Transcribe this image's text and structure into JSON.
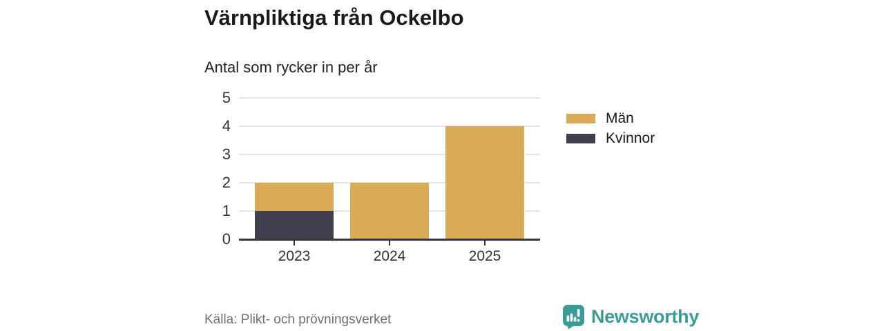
{
  "header": {
    "title": "Värnpliktiga från Ockelbo",
    "subtitle": "Antal som rycker in per år"
  },
  "chart_data": {
    "type": "bar",
    "stacked": true,
    "title": "Värnpliktiga från Ockelbo",
    "subtitle": "Antal som rycker in per år",
    "categories": [
      "2023",
      "2024",
      "2025"
    ],
    "series": [
      {
        "name": "Män",
        "color": "#D9AB57",
        "values": [
          1,
          2,
          4
        ]
      },
      {
        "name": "Kvinnor",
        "color": "#413F4D",
        "values": [
          1,
          0,
          0
        ]
      }
    ],
    "totals": [
      2,
      2,
      4
    ],
    "xlabel": "",
    "ylabel": "",
    "ylim": [
      0,
      5
    ],
    "yticks": [
      0,
      1,
      2,
      3,
      4,
      5
    ],
    "grid": true,
    "legend_position": "right"
  },
  "legend": {
    "items": [
      {
        "label": "Män",
        "color": "#D9AB57"
      },
      {
        "label": "Kvinnor",
        "color": "#413F4D"
      }
    ]
  },
  "footer": {
    "source": "Källa: Plikt- och prövningsverket",
    "brand": "Newsworthy"
  },
  "colors": {
    "men_gold": "#D9AB57",
    "women_dark": "#413F4D",
    "brand_teal": "#3B9C95",
    "axis": "#35343E",
    "gridline": "#E5E5E5"
  }
}
